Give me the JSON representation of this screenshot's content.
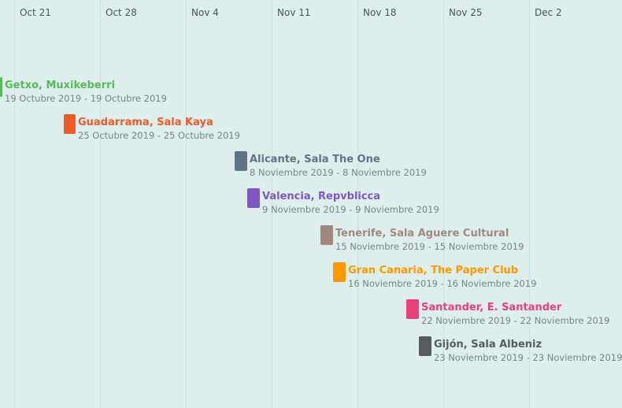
{
  "timeline": {
    "weeks": [
      "Oct 21",
      "Oct 28",
      "Nov 4",
      "Nov 11",
      "Nov 18",
      "Nov 25",
      "Dec 2"
    ],
    "events": [
      {
        "title": "Getxo, Muxikeberri",
        "dates": "19 Octubre 2019 - 19 Octubre 2019",
        "color": "#5cb85c"
      },
      {
        "title": "Guadarrama, Sala Kaya",
        "dates": "25 Octubre 2019 - 25 Octubre 2019",
        "color": "#f05a28"
      },
      {
        "title": "Alicante, Sala The One",
        "dates": "8 Noviembre 2019 - 8 Noviembre 2019",
        "color": "#5f7584"
      },
      {
        "title": "Valencia, Repvblicca",
        "dates": "9 Noviembre 2019 - 9 Noviembre 2019",
        "color": "#7e57c2"
      },
      {
        "title": "Tenerife, Sala Aguere Cultural",
        "dates": "15 Noviembre 2019 - 15 Noviembre 2019",
        "color": "#a1887f"
      },
      {
        "title": "Gran Canaria, The Paper Club",
        "dates": "16 Noviembre 2019 - 16 Noviembre 2019",
        "color": "#ff9800"
      },
      {
        "title": "Santander, E. Santander",
        "dates": "22 Noviembre 2019 - 22 Noviembre 2019",
        "color": "#ec407a"
      },
      {
        "title": "Gijón, Sala Albeniz",
        "dates": "23 Noviembre 2019 - 23 Noviembre 2019",
        "color": "#555b5e"
      }
    ]
  }
}
